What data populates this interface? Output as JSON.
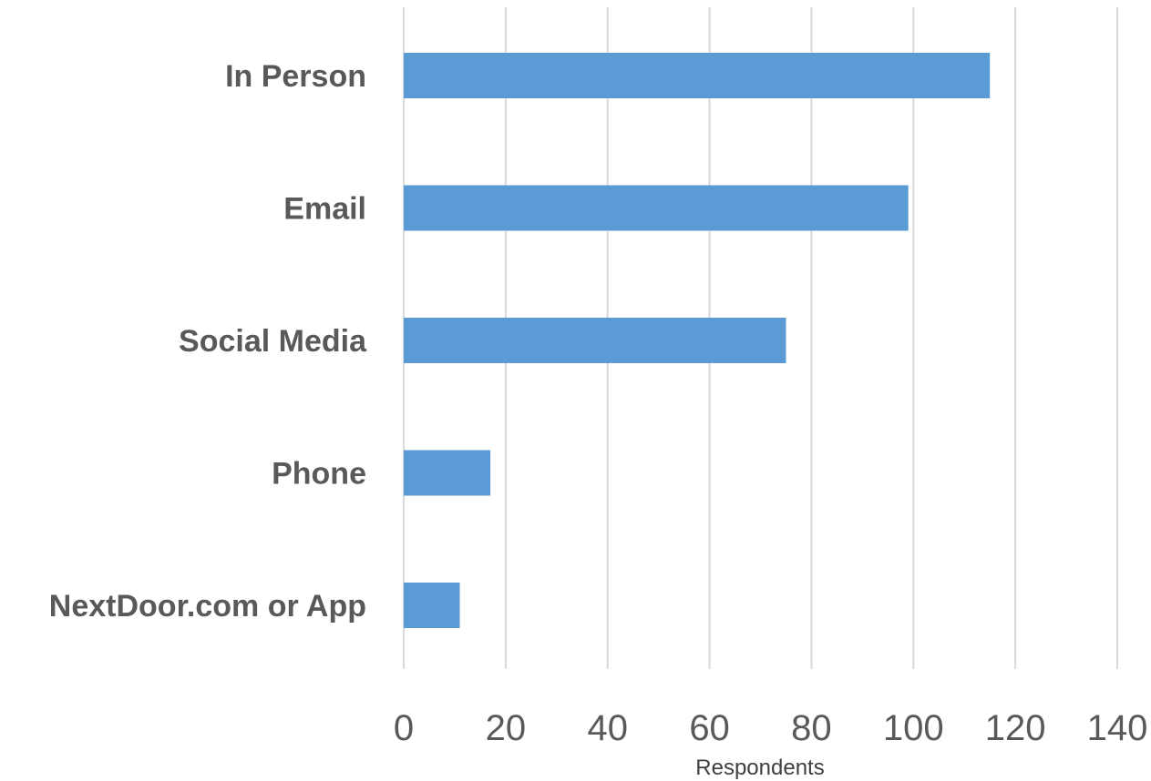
{
  "chart_data": {
    "type": "bar",
    "orientation": "horizontal",
    "categories": [
      "In Person",
      "Email",
      "Social Media",
      "Phone",
      "NextDoor.com or App"
    ],
    "values": [
      115,
      99,
      75,
      17,
      11
    ],
    "title": "",
    "xlabel": "Respondents",
    "ylabel": "",
    "xlim": [
      0,
      140
    ],
    "x_ticks": [
      "0",
      "20",
      "40",
      "60",
      "80",
      "100",
      "120",
      "140"
    ],
    "grid": "vertical",
    "legend": "none",
    "bar_color": "#5b9bd5"
  }
}
